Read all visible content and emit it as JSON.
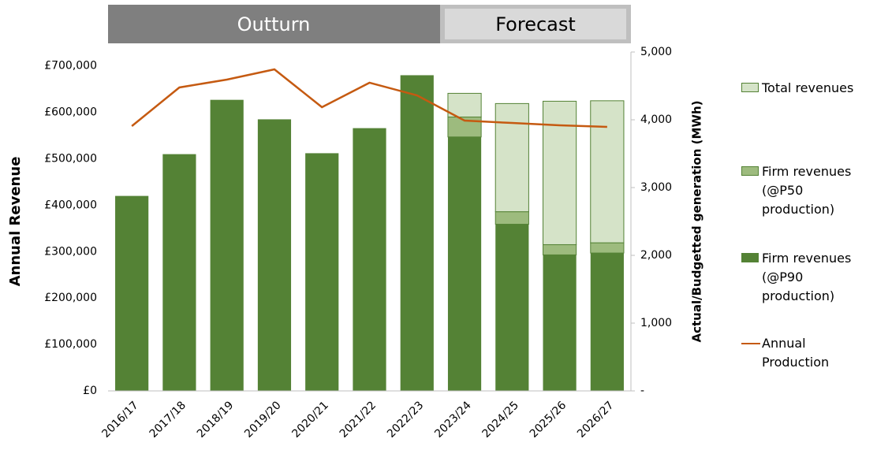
{
  "chart_data": {
    "type": "bar",
    "stacked": true,
    "header": [
      "Outturn",
      "Forecast"
    ],
    "y_label": "Annual Revenue",
    "y2_label": "Actual/Budgetted generation (MWh)",
    "categories": [
      "2016/17",
      "2017/18",
      "2018/19",
      "2019/20",
      "2020/21",
      "2021/22",
      "2022/23",
      "2023/24",
      "2024/25",
      "2025/26",
      "2026/27"
    ],
    "series": [
      {
        "name": "Firm revenues (@P90 production)",
        "color": "#548235",
        "values": [
          420000,
          510000,
          627000,
          585000,
          512000,
          566000,
          680000,
          547000,
          359000,
          293000,
          297000
        ]
      },
      {
        "name": "Firm revenues (@P50 production)",
        "color": "#9dbb7e",
        "values": [
          null,
          null,
          null,
          null,
          null,
          null,
          null,
          43000,
          27000,
          22000,
          22000
        ]
      },
      {
        "name": "Total revenues",
        "color": "#d5e3c8",
        "values": [
          null,
          null,
          null,
          null,
          null,
          null,
          null,
          51000,
          233000,
          309000,
          306000
        ]
      },
      {
        "name": "Annual Production",
        "color": "#c55a11",
        "type": "line",
        "axis": "y2",
        "values": [
          3907,
          4477,
          4593,
          4744,
          4186,
          4547,
          4360,
          3988,
          3953,
          3919,
          3895
        ]
      }
    ],
    "ylim": [
      0,
      730000
    ],
    "yticks": [
      {
        "value": 0,
        "label": "£0"
      },
      {
        "value": 100000,
        "label": "£100,000"
      },
      {
        "value": 200000,
        "label": "£200,000"
      },
      {
        "value": 300000,
        "label": "£300,000"
      },
      {
        "value": 400000,
        "label": "£400,000"
      },
      {
        "value": 500000,
        "label": "£500,000"
      },
      {
        "value": 600000,
        "label": "£600,000"
      },
      {
        "value": 700000,
        "label": "£700,000"
      }
    ],
    "y2lim": [
      0,
      5000
    ],
    "y2ticks": [
      {
        "value": 0,
        "label": "-"
      },
      {
        "value": 1000,
        "label": "1,000"
      },
      {
        "value": 2000,
        "label": "2,000"
      },
      {
        "value": 3000,
        "label": "3,000"
      },
      {
        "value": 4000,
        "label": "4,000"
      },
      {
        "value": 5000,
        "label": "5,000"
      }
    ],
    "legend": "right"
  }
}
